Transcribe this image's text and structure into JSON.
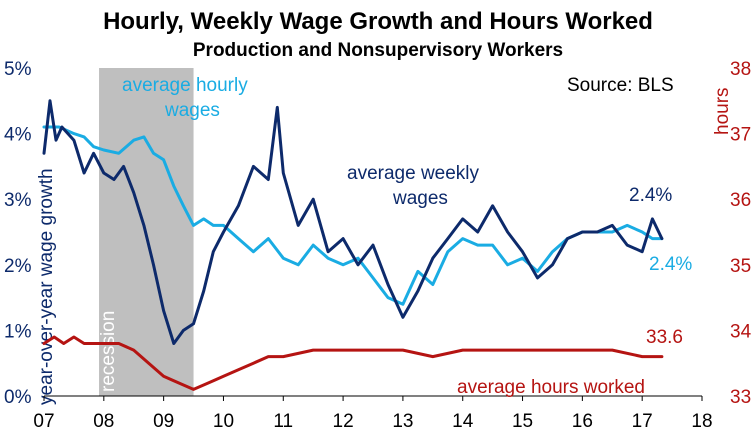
{
  "chart_data": {
    "type": "line",
    "title": "Hourly, Weekly Wage Growth and Hours Worked",
    "subtitle": "Production and Nonsupervisory Workers",
    "source": "Source: BLS",
    "ylabel_left": "year-over-year wage growth",
    "ylabel_right": "hours",
    "x_ticks": [
      "07",
      "08",
      "09",
      "10",
      "11",
      "12",
      "13",
      "14",
      "15",
      "16",
      "17",
      "18"
    ],
    "x_range": [
      2007.0,
      2018.0
    ],
    "y_left_ticks": [
      "0%",
      "1%",
      "2%",
      "3%",
      "4%",
      "5%"
    ],
    "y_left_range": [
      0,
      5
    ],
    "y_right_ticks": [
      "33",
      "34",
      "35",
      "36",
      "37",
      "38"
    ],
    "y_right_range": [
      33,
      38
    ],
    "grid": false,
    "recession": {
      "label": "recession",
      "start": 2007.92,
      "end": 2009.5
    },
    "series": [
      {
        "name": "average hourly wages",
        "axis": "left",
        "color": "#1AACE3",
        "x": [
          2007.0,
          2007.25,
          2007.5,
          2007.67,
          2007.83,
          2008.0,
          2008.25,
          2008.5,
          2008.67,
          2008.83,
          2009.0,
          2009.17,
          2009.33,
          2009.5,
          2009.67,
          2009.83,
          2010.0,
          2010.25,
          2010.5,
          2010.75,
          2011.0,
          2011.25,
          2011.5,
          2011.75,
          2012.0,
          2012.25,
          2012.5,
          2012.75,
          2013.0,
          2013.25,
          2013.5,
          2013.75,
          2014.0,
          2014.25,
          2014.5,
          2014.75,
          2015.0,
          2015.25,
          2015.5,
          2015.75,
          2016.0,
          2016.25,
          2016.5,
          2016.75,
          2017.0,
          2017.17,
          2017.33
        ],
        "values": [
          4.1,
          4.1,
          4.0,
          3.95,
          3.8,
          3.75,
          3.7,
          3.9,
          3.95,
          3.7,
          3.6,
          3.2,
          2.9,
          2.6,
          2.7,
          2.6,
          2.6,
          2.4,
          2.2,
          2.4,
          2.1,
          2.0,
          2.3,
          2.1,
          2.0,
          2.1,
          1.8,
          1.5,
          1.4,
          1.9,
          1.7,
          2.2,
          2.4,
          2.3,
          2.3,
          2.0,
          2.1,
          1.9,
          2.2,
          2.4,
          2.5,
          2.5,
          2.5,
          2.6,
          2.5,
          2.4,
          2.4
        ],
        "end_label": "2.4%"
      },
      {
        "name": "average weekly wages",
        "axis": "left",
        "color": "#0D2A6B",
        "x": [
          2007.0,
          2007.1,
          2007.2,
          2007.3,
          2007.5,
          2007.67,
          2007.83,
          2008.0,
          2008.17,
          2008.33,
          2008.5,
          2008.67,
          2008.83,
          2009.0,
          2009.17,
          2009.33,
          2009.5,
          2009.67,
          2009.83,
          2010.0,
          2010.25,
          2010.5,
          2010.75,
          2010.9,
          2011.0,
          2011.25,
          2011.5,
          2011.75,
          2012.0,
          2012.25,
          2012.5,
          2012.75,
          2013.0,
          2013.25,
          2013.5,
          2013.75,
          2014.0,
          2014.25,
          2014.5,
          2014.75,
          2015.0,
          2015.25,
          2015.5,
          2015.75,
          2016.0,
          2016.25,
          2016.5,
          2016.75,
          2017.0,
          2017.17,
          2017.33
        ],
        "values": [
          3.7,
          4.5,
          3.9,
          4.1,
          3.9,
          3.4,
          3.7,
          3.4,
          3.3,
          3.5,
          3.1,
          2.6,
          2.0,
          1.3,
          0.8,
          1.0,
          1.1,
          1.6,
          2.2,
          2.5,
          2.9,
          3.5,
          3.3,
          4.4,
          3.4,
          2.6,
          3.0,
          2.2,
          2.4,
          2.0,
          2.3,
          1.7,
          1.2,
          1.6,
          2.1,
          2.4,
          2.7,
          2.5,
          2.9,
          2.5,
          2.2,
          1.8,
          2.0,
          2.4,
          2.5,
          2.5,
          2.6,
          2.3,
          2.2,
          2.7,
          2.4
        ],
        "end_label": "2.4%"
      },
      {
        "name": "average hours worked",
        "axis": "right",
        "color": "#B51412",
        "x": [
          2007.0,
          2007.17,
          2007.33,
          2007.5,
          2007.67,
          2007.83,
          2008.0,
          2008.25,
          2008.5,
          2008.75,
          2009.0,
          2009.25,
          2009.5,
          2009.75,
          2010.0,
          2010.25,
          2010.5,
          2010.75,
          2011.0,
          2011.5,
          2012.0,
          2012.5,
          2013.0,
          2013.5,
          2014.0,
          2014.5,
          2015.0,
          2015.5,
          2016.0,
          2016.5,
          2017.0,
          2017.33
        ],
        "values": [
          33.8,
          33.9,
          33.8,
          33.9,
          33.8,
          33.8,
          33.8,
          33.8,
          33.7,
          33.5,
          33.3,
          33.2,
          33.1,
          33.2,
          33.3,
          33.4,
          33.5,
          33.6,
          33.6,
          33.7,
          33.7,
          33.7,
          33.7,
          33.6,
          33.7,
          33.7,
          33.7,
          33.7,
          33.7,
          33.7,
          33.6,
          33.6
        ],
        "end_label": "33.6"
      }
    ],
    "annotations": {
      "hourly_label_line1": "average hourly",
      "hourly_label_line2": "wages",
      "weekly_label_line1": "average weekly",
      "weekly_label_line2": "wages",
      "hours_label": "average hours worked"
    }
  }
}
